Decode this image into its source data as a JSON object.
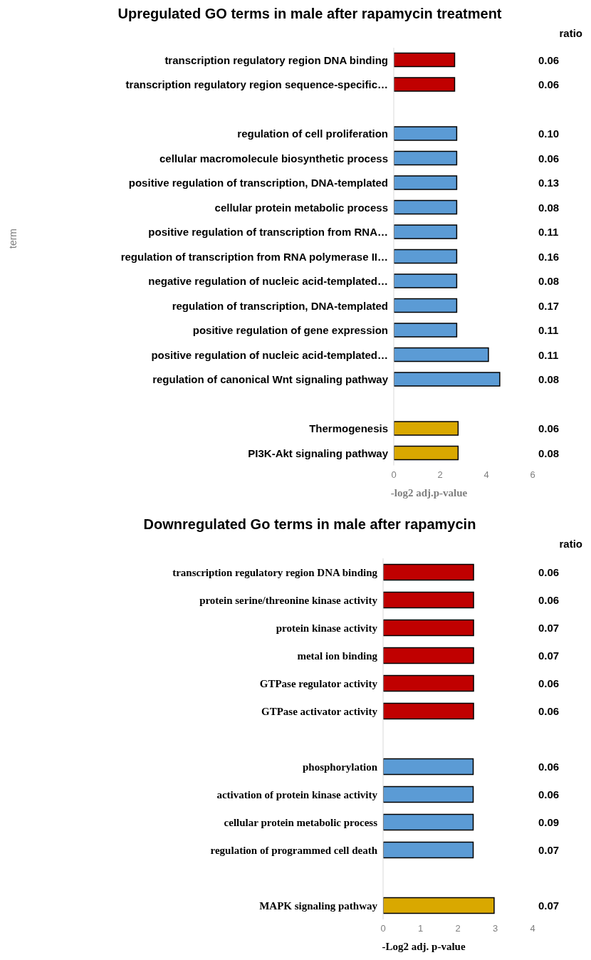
{
  "chart_data": [
    {
      "type": "bar",
      "orientation": "horizontal",
      "title": "Upregulated GO terms in male after rapamycin treatment",
      "xlabel": "-log2 adj.p-value",
      "ylabel": "term",
      "categories": [
        "transcription regulatory region DNA binding",
        "transcription regulatory region sequence-specific…",
        null,
        "regulation of cell proliferation",
        "cellular macromolecule biosynthetic process",
        "positive regulation of transcription, DNA-templated",
        "cellular protein metabolic process",
        "positive regulation of transcription from RNA…",
        "regulation of transcription from RNA polymerase II…",
        "negative regulation of nucleic acid-templated…",
        "regulation of transcription, DNA-templated",
        "positive regulation of gene expression",
        "positive regulation of nucleic acid-templated…",
        "regulation of canonical Wnt signaling pathway",
        null,
        "Thermogenesis",
        "PI3K-Akt signaling pathway"
      ],
      "values": [
        2.63,
        2.63,
        null,
        2.72,
        2.72,
        2.72,
        2.72,
        2.72,
        2.72,
        2.72,
        2.72,
        2.72,
        4.09,
        4.58,
        null,
        2.78,
        2.78
      ],
      "colors": [
        "#c00000",
        "#c00000",
        null,
        "#5b9bd5",
        "#5b9bd5",
        "#5b9bd5",
        "#5b9bd5",
        "#5b9bd5",
        "#5b9bd5",
        "#5b9bd5",
        "#5b9bd5",
        "#5b9bd5",
        "#5b9bd5",
        "#5b9bd5",
        null,
        "#d9a800",
        "#d9a800"
      ],
      "xlim": [
        0,
        6
      ],
      "xticks": [
        0,
        2,
        4,
        6
      ],
      "grid": false,
      "legend": false,
      "annotations": [
        "ratio",
        "0.06",
        "0.06",
        "0.10",
        "0.06",
        "0.13",
        "0.08",
        "0.11",
        "0.16",
        "0.08",
        "0.17",
        "0.11",
        "0.11",
        "0.08",
        "0.06",
        "0.08"
      ]
    },
    {
      "type": "bar",
      "orientation": "horizontal",
      "title": "Downregulated Go terms in male after rapamycin",
      "xlabel": "-Log2 adj. p-value",
      "categories": [
        "transcription regulatory region DNA binding",
        "protein serine/threonine kinase activity",
        "protein kinase activity",
        "metal ion binding",
        "GTPase regulator activity",
        "GTPase activator activity",
        null,
        "phosphorylation",
        "activation of protein kinase activity",
        "cellular protein metabolic process",
        "regulation of programmed cell death",
        null,
        "MAPK signaling pathway"
      ],
      "values": [
        2.42,
        2.42,
        2.42,
        2.42,
        2.42,
        2.42,
        null,
        2.41,
        2.41,
        2.41,
        2.41,
        null,
        2.97
      ],
      "colors": [
        "#c00000",
        "#c00000",
        "#c00000",
        "#c00000",
        "#c00000",
        "#c00000",
        null,
        "#5b9bd5",
        "#5b9bd5",
        "#5b9bd5",
        "#5b9bd5",
        null,
        "#d9a800"
      ],
      "xlim": [
        0,
        4
      ],
      "xticks": [
        0,
        1,
        2,
        3,
        4
      ],
      "grid": false,
      "legend": false,
      "annotations": [
        "ratio",
        "0.06",
        "0.06",
        "0.07",
        "0.07",
        "0.06",
        "0.06",
        "0.06",
        "0.06",
        "0.09",
        "0.07",
        "0.07"
      ]
    }
  ]
}
